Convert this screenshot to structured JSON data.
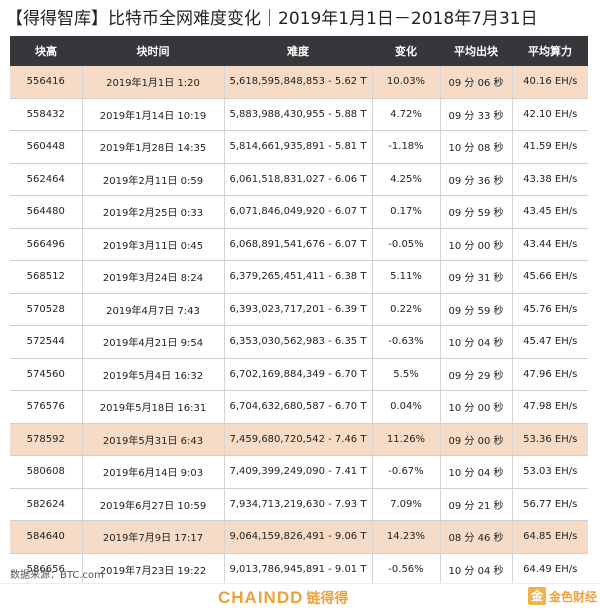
{
  "title": "【得得智库】比特币全网难度变化｜2019年1月1日－2018年7月31日",
  "table": {
    "headers": [
      "块高",
      "块时间",
      "难度",
      "变化",
      "平均出块",
      "平均算力"
    ],
    "rows": [
      {
        "block_height": "556416",
        "block_time": "2019年1月1日 1:20",
        "difficulty": "5,618,595,848,853 - 5.62 T",
        "change": "10.03%",
        "avg_block_time": "09 分 06 秒",
        "avg_hashrate": "40.16 EH/s",
        "highlight": true
      },
      {
        "block_height": "558432",
        "block_time": "2019年1月14日 10:19",
        "difficulty": "5,883,988,430,955 - 5.88 T",
        "change": "4.72%",
        "avg_block_time": "09 分 33 秒",
        "avg_hashrate": "42.10 EH/s",
        "highlight": false
      },
      {
        "block_height": "560448",
        "block_time": "2019年1月28日 14:35",
        "difficulty": "5,814,661,935,891 - 5.81 T",
        "change": "-1.18%",
        "avg_block_time": "10 分 08 秒",
        "avg_hashrate": "41.59 EH/s",
        "highlight": false
      },
      {
        "block_height": "562464",
        "block_time": "2019年2月11日 0:59",
        "difficulty": "6,061,518,831,027 - 6.06 T",
        "change": "4.25%",
        "avg_block_time": "09 分 36 秒",
        "avg_hashrate": "43.38 EH/s",
        "highlight": false
      },
      {
        "block_height": "564480",
        "block_time": "2019年2月25日 0:33",
        "difficulty": "6,071,846,049,920 - 6.07 T",
        "change": "0.17%",
        "avg_block_time": "09 分 59 秒",
        "avg_hashrate": "43.45 EH/s",
        "highlight": false
      },
      {
        "block_height": "566496",
        "block_time": "2019年3月11日 0:45",
        "difficulty": "6,068,891,541,676 - 6.07 T",
        "change": "-0.05%",
        "avg_block_time": "10 分 00 秒",
        "avg_hashrate": "43.44 EH/s",
        "highlight": false
      },
      {
        "block_height": "568512",
        "block_time": "2019年3月24日 8:24",
        "difficulty": "6,379,265,451,411 - 6.38 T",
        "change": "5.11%",
        "avg_block_time": "09 分 31 秒",
        "avg_hashrate": "45.66 EH/s",
        "highlight": false
      },
      {
        "block_height": "570528",
        "block_time": "2019年4月7日 7:43",
        "difficulty": "6,393,023,717,201 - 6.39 T",
        "change": "0.22%",
        "avg_block_time": "09 分 59 秒",
        "avg_hashrate": "45.76 EH/s",
        "highlight": false
      },
      {
        "block_height": "572544",
        "block_time": "2019年4月21日 9:54",
        "difficulty": "6,353,030,562,983 - 6.35 T",
        "change": "-0.63%",
        "avg_block_time": "10 分 04 秒",
        "avg_hashrate": "45.47 EH/s",
        "highlight": false
      },
      {
        "block_height": "574560",
        "block_time": "2019年5月4日 16:32",
        "difficulty": "6,702,169,884,349 - 6.70 T",
        "change": "5.5%",
        "avg_block_time": "09 分 29 秒",
        "avg_hashrate": "47.96 EH/s",
        "highlight": false
      },
      {
        "block_height": "576576",
        "block_time": "2019年5月18日 16:31",
        "difficulty": "6,704,632,680,587 - 6.70 T",
        "change": "0.04%",
        "avg_block_time": "10 分 00 秒",
        "avg_hashrate": "47.98 EH/s",
        "highlight": false
      },
      {
        "block_height": "578592",
        "block_time": "2019年5月31日 6:43",
        "difficulty": "7,459,680,720,542 - 7.46 T",
        "change": "11.26%",
        "avg_block_time": "09 分 00 秒",
        "avg_hashrate": "53.36 EH/s",
        "highlight": true
      },
      {
        "block_height": "580608",
        "block_time": "2019年6月14日 9:03",
        "difficulty": "7,409,399,249,090 - 7.41 T",
        "change": "-0.67%",
        "avg_block_time": "10 分 04 秒",
        "avg_hashrate": "53.03 EH/s",
        "highlight": false
      },
      {
        "block_height": "582624",
        "block_time": "2019年6月27日 10:59",
        "difficulty": "7,934,713,219,630 - 7.93 T",
        "change": "7.09%",
        "avg_block_time": "09 分 21 秒",
        "avg_hashrate": "56.77 EH/s",
        "highlight": false
      },
      {
        "block_height": "584640",
        "block_time": "2019年7月9日 17:17",
        "difficulty": "9,064,159,826,491 - 9.06 T",
        "change": "14.23%",
        "avg_block_time": "08 分 46 秒",
        "avg_hashrate": "64.85 EH/s",
        "highlight": true
      },
      {
        "block_height": "586656",
        "block_time": "2019年7月23日 19:22",
        "difficulty": "9,013,786,945,891 - 9.01 T",
        "change": "-0.56%",
        "avg_block_time": "10 分 04 秒",
        "avg_hashrate": "64.49 EH/s",
        "highlight": false
      }
    ]
  },
  "source": "数据来源：BTC.com",
  "footer": {
    "logo_en": "CHAINDD",
    "logo_cn": "链得得",
    "watermark_box": "金",
    "watermark_text": "金色财经"
  },
  "colors": {
    "header_bg": "#36373a",
    "highlight_row": "#f6dcc7",
    "brand_orange": "#f0a23a"
  }
}
